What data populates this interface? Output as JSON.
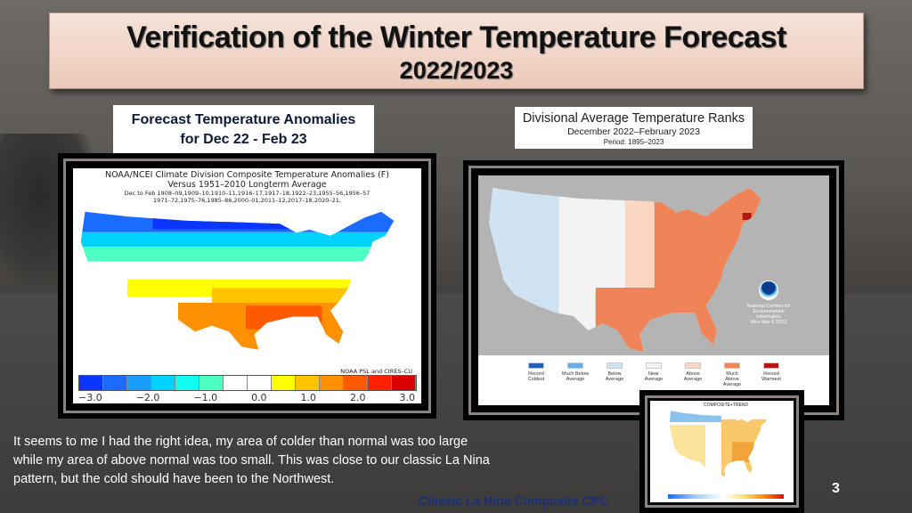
{
  "title": {
    "line1": "Verification of  the Winter  Temperature Forecast",
    "line2": "2022/2023"
  },
  "left_label": {
    "line1": "Forecast Temperature Anomalies",
    "line2": "for Dec 22 - Feb 23"
  },
  "right_label": {
    "line1": "Divisional Average Temperature Ranks",
    "line2": "December 2022–February 2023",
    "line3": "Period: 1895–2023"
  },
  "left_map": {
    "title": "NOAA/NCEI Climate Division Composite Temperature Anomalies (F)",
    "subtitle": "Versus 1951–2010 Longterm Average",
    "years1": "Dec to Feb   1908–09,1909–10,1910–11,1916–17,1917–18,1922–23,1955–56,1956–57",
    "years2": "1971–72,1975–76,1985–86,2000–01,2011–12,2017–18,2020–21,",
    "credit": "NOAA PSL and CIRES–CU",
    "colorbar": [
      "#0a36ff",
      "#1a6bff",
      "#1a9cff",
      "#00d2ff",
      "#10fff0",
      "#4dffc0",
      "#ffffff",
      "#ffffff",
      "#ffff00",
      "#ffc400",
      "#ff9000",
      "#ff5a00",
      "#ff2000",
      "#d80000"
    ],
    "ticks": [
      "−3.0",
      "−2.0",
      "−1.0",
      "0.0",
      "1.0",
      "2.0",
      "3.0"
    ]
  },
  "right_map": {
    "legend": [
      {
        "label": "Record Coldest",
        "color": "#1f5fb8"
      },
      {
        "label": "Much Below Average",
        "color": "#6aaee0"
      },
      {
        "label": "Below Average",
        "color": "#cfe3f3"
      },
      {
        "label": "Near Average",
        "color": "#f3f3f3"
      },
      {
        "label": "Above Average",
        "color": "#fbd6c0"
      },
      {
        "label": "Much Above Average",
        "color": "#ef8458"
      },
      {
        "label": "Record Warmest",
        "color": "#b01818"
      }
    ],
    "agency": "National Centers for Environmental Information",
    "date": "Mon Mar  6 2023"
  },
  "inset_map": {
    "title": "COMPOSITE+TREND"
  },
  "body_text": [
    "It seems to me I had the right idea, my area of colder than normal was too large",
    "while my area of above normal was too small.   This was close to our classic La Nina",
    "pattern, but the cold should have been to the Northwest."
  ],
  "caption": "Classic La Nina Composite CPC",
  "page_number": "3"
}
